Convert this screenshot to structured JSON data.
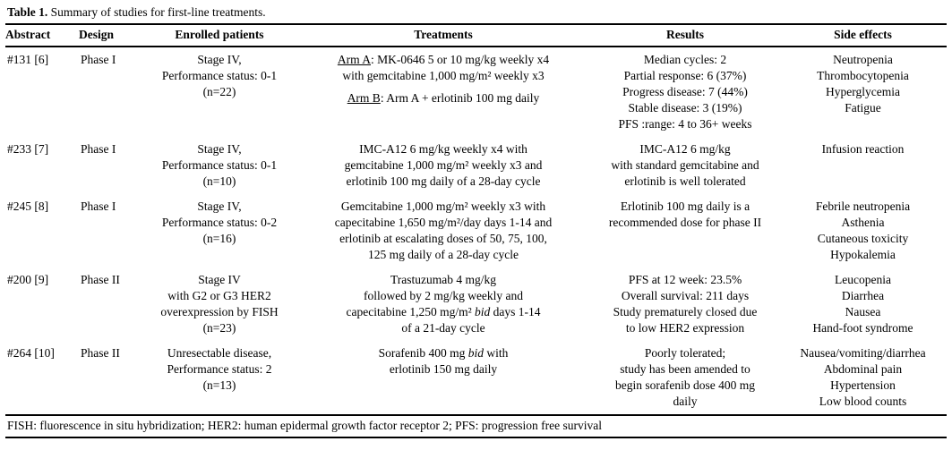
{
  "title": {
    "label": "Table 1.",
    "text": " Summary of studies for first-line treatments."
  },
  "table": {
    "columns": [
      {
        "key": "abstract",
        "label": "Abstract",
        "align": "left"
      },
      {
        "key": "design",
        "label": "Design",
        "align": "left"
      },
      {
        "key": "enrolled",
        "label": "Enrolled patients",
        "align": "center"
      },
      {
        "key": "treatments",
        "label": "Treatments",
        "align": "center"
      },
      {
        "key": "results",
        "label": "Results",
        "align": "center"
      },
      {
        "key": "side_effects",
        "label": "Side effects",
        "align": "center"
      }
    ],
    "rows": [
      {
        "abstract": "#131 [6]",
        "design": "Phase I",
        "enrolled": [
          "Stage IV,",
          "Performance status: 0-1",
          "(n=22)"
        ],
        "treatments": [
          [
            {
              "t": "Arm A",
              "u": true
            },
            {
              "t": ": MK-0646 5 or 10 mg/kg weekly x4"
            }
          ],
          "with gemcitabine 1,000 mg/m² weekly x3",
          {
            "gap": true
          },
          [
            {
              "t": "Arm B",
              "u": true
            },
            {
              "t": ": Arm A + erlotinib 100 mg daily"
            }
          ]
        ],
        "results": [
          "Median cycles: 2",
          "Partial response: 6 (37%)",
          "Progress disease: 7 (44%)",
          "Stable disease: 3 (19%)",
          "PFS :range: 4 to 36+ weeks"
        ],
        "side_effects": [
          "Neutropenia",
          "Thrombocytopenia",
          "Hyperglycemia",
          "Fatigue"
        ]
      },
      {
        "abstract": "#233 [7]",
        "design": "Phase I",
        "enrolled": [
          "Stage IV,",
          "Performance status: 0-1",
          "(n=10)"
        ],
        "treatments": [
          "IMC-A12 6 mg/kg weekly x4 with",
          "gemcitabine 1,000 mg/m² weekly x3 and",
          "erlotinib 100 mg daily of a 28-day cycle"
        ],
        "results": [
          "IMC-A12 6 mg/kg",
          "with standard gemcitabine and",
          "erlotinib is well tolerated"
        ],
        "side_effects": [
          "Infusion reaction"
        ]
      },
      {
        "abstract": "#245 [8]",
        "design": "Phase I",
        "enrolled": [
          "Stage IV,",
          "Performance status: 0-2",
          "(n=16)"
        ],
        "treatments": [
          "Gemcitabine 1,000 mg/m² weekly x3 with",
          "capecitabine 1,650 mg/m²/day days 1-14 and",
          "erlotinib at escalating doses of 50, 75, 100,",
          "125 mg daily of a 28-day cycle"
        ],
        "results": [
          "Erlotinib 100 mg daily is a",
          "recommended dose for phase II"
        ],
        "side_effects": [
          "Febrile neutropenia",
          "Asthenia",
          "Cutaneous toxicity",
          "Hypokalemia"
        ]
      },
      {
        "abstract": "#200 [9]",
        "design": "Phase II",
        "enrolled": [
          "Stage IV",
          "with G2 or G3 HER2",
          "overexpression by FISH",
          "(n=23)"
        ],
        "treatments": [
          "Trastuzumab 4 mg/kg",
          "followed by 2 mg/kg weekly and",
          [
            {
              "t": "capecitabine 1,250 mg/m² "
            },
            {
              "t": "bid",
              "i": true
            },
            {
              "t": " days 1-14"
            }
          ],
          "of a 21-day cycle"
        ],
        "results": [
          "PFS at 12 week: 23.5%",
          "Overall survival: 211 days",
          "Study prematurely closed due",
          "to low HER2 expression"
        ],
        "side_effects": [
          "Leucopenia",
          "Diarrhea",
          "Nausea",
          "Hand-foot syndrome"
        ]
      },
      {
        "abstract": "#264 [10]",
        "design": "Phase II",
        "enrolled": [
          "Unresectable disease,",
          "Performance status: 2",
          "(n=13)"
        ],
        "treatments": [
          [
            {
              "t": "Sorafenib 400 mg "
            },
            {
              "t": "bid",
              "i": true
            },
            {
              "t": " with"
            }
          ],
          "erlotinib 150 mg daily"
        ],
        "results": [
          "Poorly tolerated;",
          "study has been amended to",
          "begin sorafenib dose 400 mg",
          "daily"
        ],
        "side_effects": [
          "Nausea/vomiting/diarrhea",
          "Abdominal pain",
          "Hypertension",
          "Low blood counts"
        ]
      }
    ]
  },
  "footnote": "FISH: fluorescence in situ hybridization; HER2: human epidermal growth factor receptor 2; PFS: progression free survival"
}
